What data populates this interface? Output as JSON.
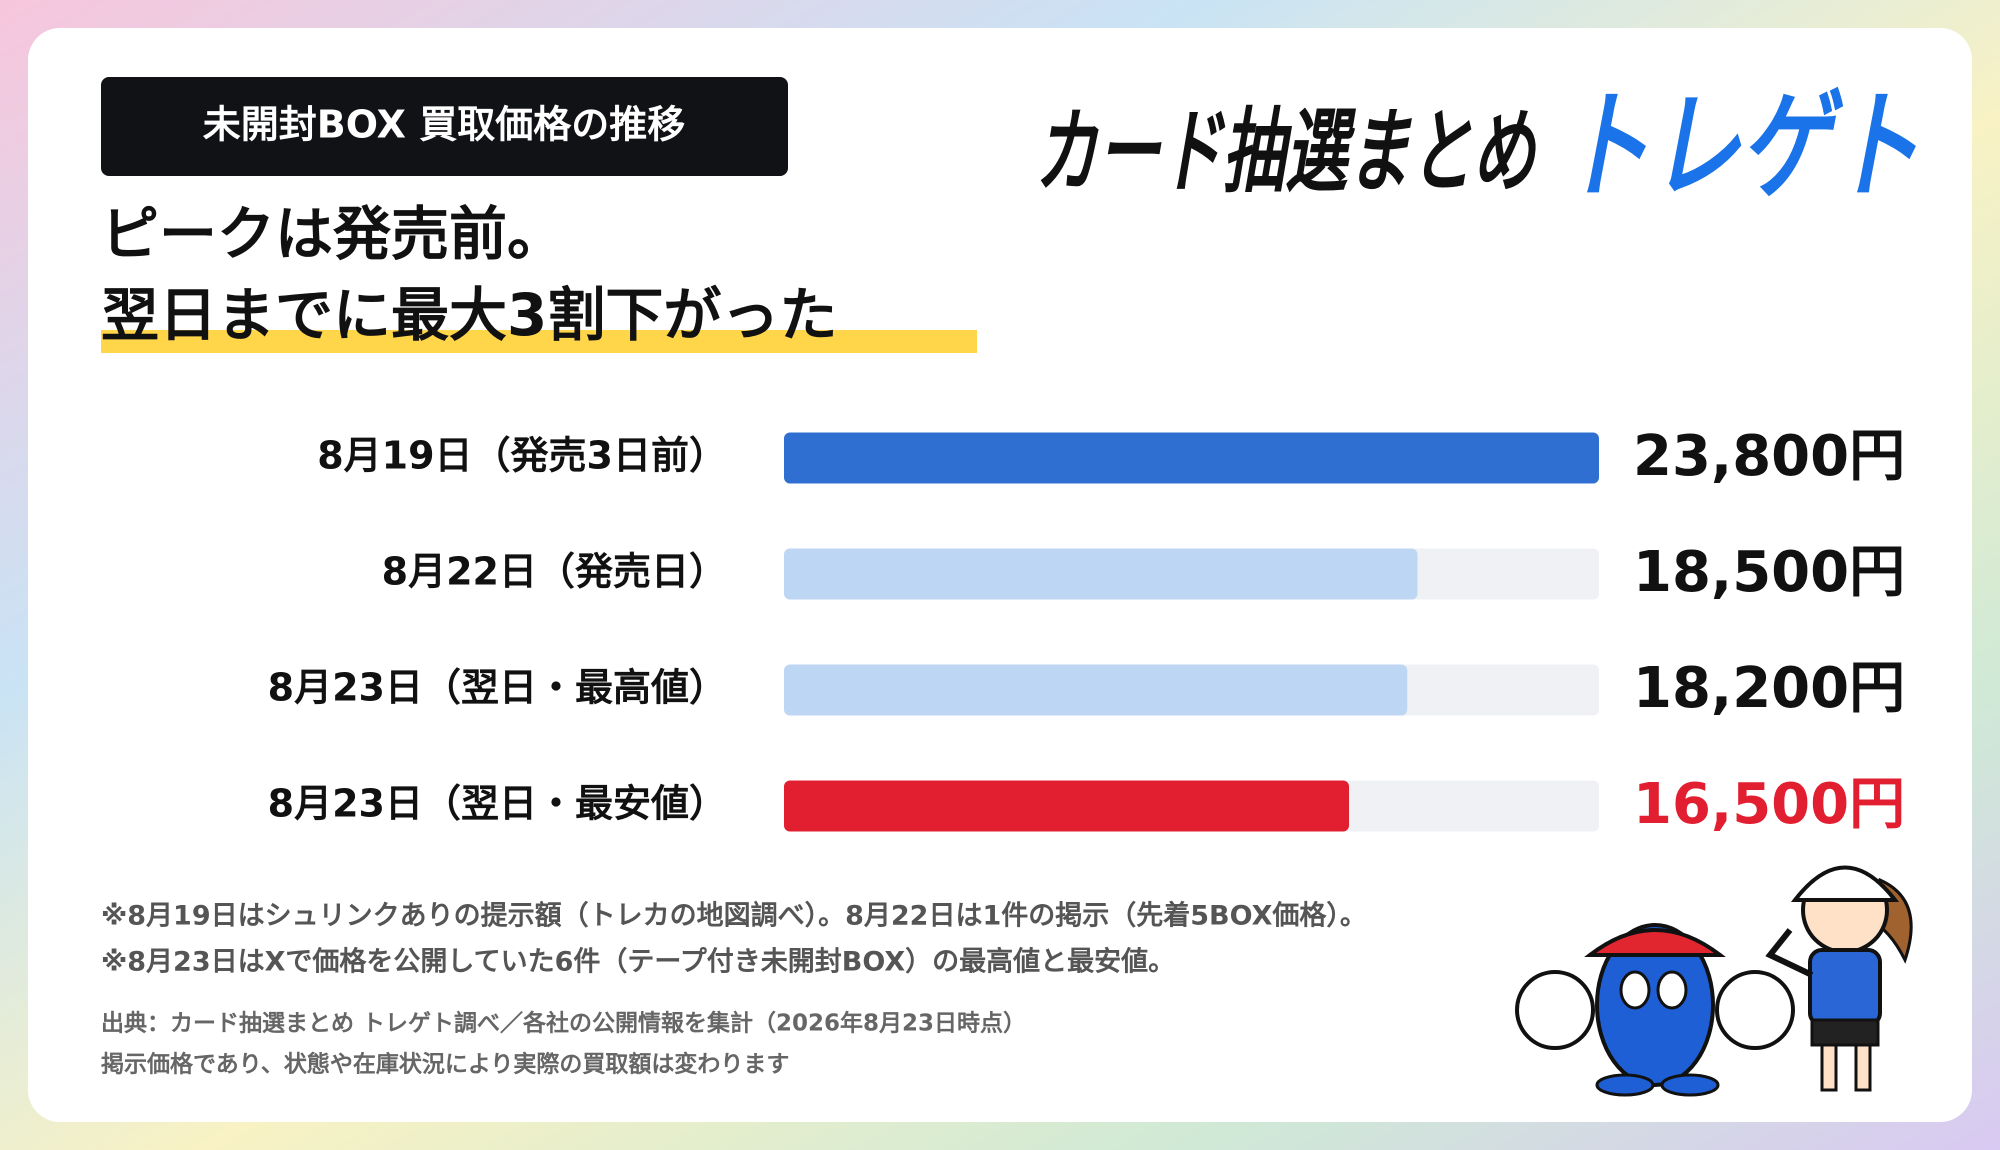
{
  "header": {
    "tag": "未開封BOX 買取価格の推移",
    "headline": [
      "ピークは発売前。",
      "翌日までに最大3割下がった"
    ],
    "logo": [
      "カード抽選まとめ",
      "トレゲト"
    ]
  },
  "chart_data": {
    "type": "bar",
    "orientation": "horizontal",
    "categories": [
      "8月19日（発売3日前）",
      "8月22日（発売日）",
      "8月23日（翌日・最高値）",
      "8月23日（翌日・最安値）"
    ],
    "values": [
      23800,
      18500,
      18200,
      16500
    ],
    "value_labels": [
      "23,800円",
      "18,500円",
      "18,200円",
      "16,500円"
    ],
    "colors": [
      "#2e6fd1",
      "#bcd6f3",
      "#bcd6f3",
      "#e21f30"
    ],
    "label_colors": [
      "#111111",
      "#111111",
      "#111111",
      "#e21f30"
    ],
    "track_color": "#eff1f4",
    "xlim": [
      0,
      23800
    ]
  },
  "notes": [
    "※8月19日はシュリンクありの提示額（トレカの地図調べ）。8月22日は1件の掲示（先着5BOX価格）。",
    "※8月23日はXで価格を公開していた6件（テープ付き未開封BOX）の最高値と最安値。"
  ],
  "source": [
    "出典：カード抽選まとめ トレゲト調べ／各社の公開情報を集計（2026年8月23日時点）",
    "掲示価格であり、状態や在庫状況により実際の買取額は変わります"
  ]
}
